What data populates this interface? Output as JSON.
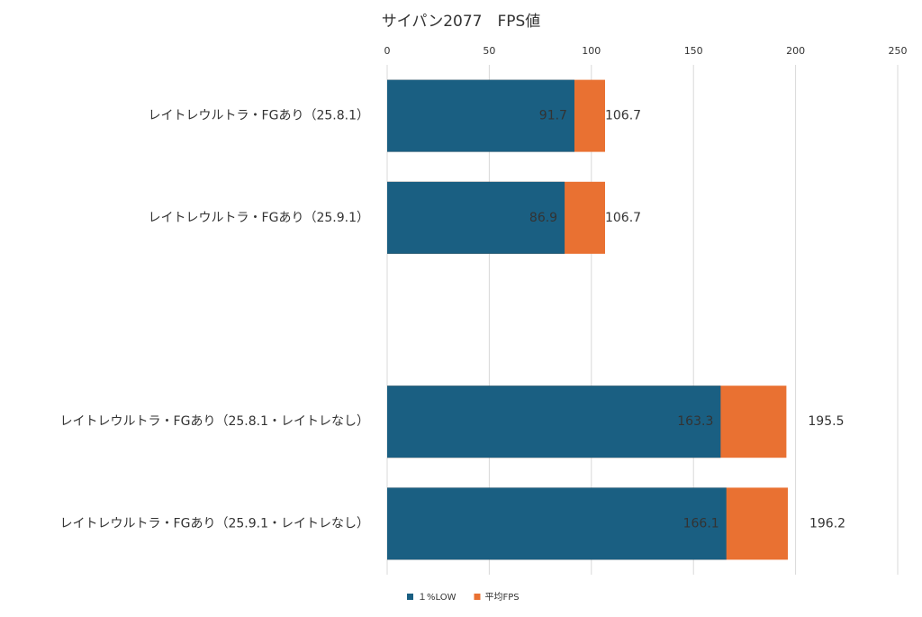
{
  "chart_data": {
    "type": "bar",
    "orientation": "horizontal",
    "overlap": true,
    "title": "サイパン2077　FPS値",
    "categories": [
      "レイトレウルトラ・FGあり（25.8.1）",
      "レイトレウルトラ・FGあり（25.9.1）",
      null,
      "レイトレウルトラ・FGあり（25.8.1・レイトレなし）",
      "レイトレウルトラ・FGあり（25.9.1・レイトレなし）"
    ],
    "series": [
      {
        "name": "１%LOW",
        "color": "#1a5f82",
        "values": [
          91.7,
          86.9,
          null,
          163.3,
          166.1
        ]
      },
      {
        "name": "平均FPS",
        "color": "#e97132",
        "values": [
          106.7,
          106.7,
          null,
          195.5,
          196.2
        ]
      }
    ],
    "xlim": [
      0,
      250
    ],
    "xticks": [
      0,
      50,
      100,
      150,
      200,
      250
    ],
    "grid": true,
    "legend": "bottom"
  }
}
